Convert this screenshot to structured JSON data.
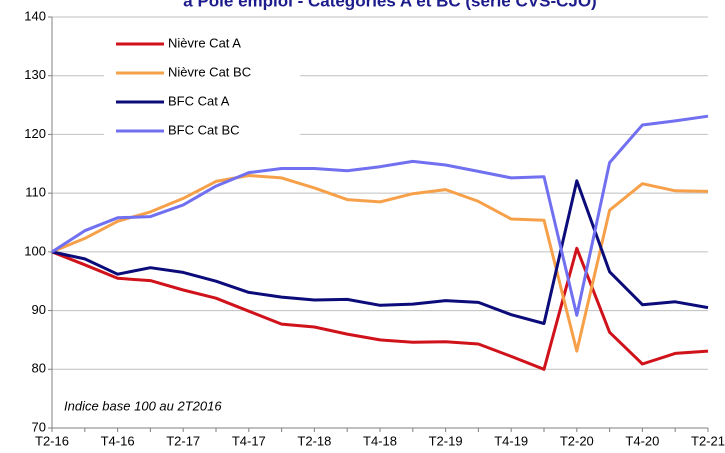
{
  "chart_data": {
    "type": "line",
    "title": "à Pôle emploi - Catégories A et BC (série CVS-CJO)",
    "annotation": "Indice base 100 au 2T2016",
    "categories": [
      "T2-16",
      null,
      "T4-16",
      null,
      "T2-17",
      null,
      "T4-17",
      null,
      "T2-18",
      null,
      "T4-18",
      null,
      "T2-19",
      null,
      "T4-19",
      null,
      "T2-20",
      null,
      "T4-20",
      null,
      "T2-21"
    ],
    "series": [
      {
        "name": "Nièvre Cat A",
        "color": "#d0121b",
        "values": [
          100,
          97.8,
          95.5,
          95.1,
          93.5,
          92.1,
          89.9,
          87.7,
          87.2,
          86.0,
          85.0,
          84.6,
          84.7,
          84.3,
          82.2,
          80.0,
          100.6,
          86.3,
          80.9,
          82.7,
          83.1
        ]
      },
      {
        "name": "Nièvre Cat BC",
        "color": "#f7a04a",
        "values": [
          100,
          102.3,
          105.2,
          106.8,
          109.1,
          112.0,
          113.0,
          112.6,
          110.9,
          108.9,
          108.5,
          109.9,
          110.6,
          108.6,
          105.6,
          105.4,
          83.1,
          107.1,
          111.6,
          110.4,
          110.3
        ]
      },
      {
        "name": "BFC Cat A",
        "color": "#0b0b7a",
        "values": [
          100,
          98.8,
          96.2,
          97.3,
          96.5,
          95.0,
          93.1,
          92.3,
          91.8,
          91.9,
          90.9,
          91.1,
          91.7,
          91.4,
          89.3,
          87.8,
          112.1,
          96.6,
          91.0,
          91.5,
          90.5
        ]
      },
      {
        "name": "BFC Cat BC",
        "color": "#7070f0",
        "values": [
          100,
          103.6,
          105.8,
          106.0,
          108.0,
          111.2,
          113.5,
          114.2,
          114.2,
          113.8,
          114.5,
          115.4,
          114.8,
          113.7,
          112.6,
          112.8,
          89.2,
          115.2,
          121.6,
          122.3,
          123.1
        ]
      }
    ],
    "ylim": [
      70,
      140
    ],
    "yticks": [
      70,
      80,
      90,
      100,
      110,
      120,
      130,
      140
    ],
    "grid": true,
    "legend": "top-left"
  }
}
